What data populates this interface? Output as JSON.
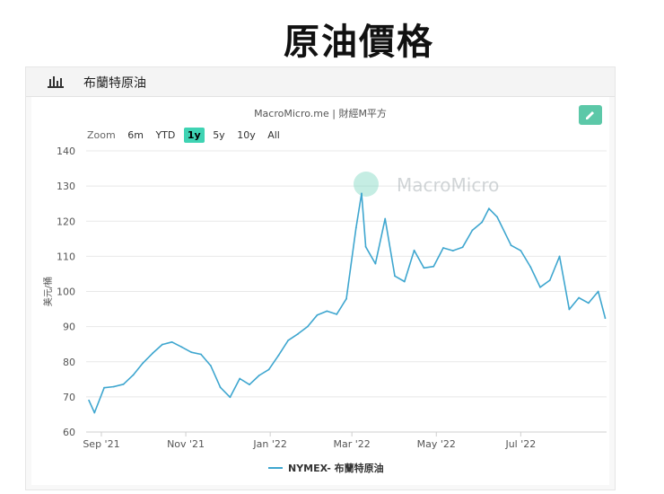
{
  "page_title": "原油價格",
  "card": {
    "title": "布蘭特原油",
    "source": "MacroMicro.me | 財經M平方",
    "watermark": "MacroMicro"
  },
  "zoom": {
    "label": "Zoom",
    "options": [
      "6m",
      "YTD",
      "1y",
      "5y",
      "10y",
      "All"
    ],
    "selected": "1y"
  },
  "colors": {
    "line": "#3ea6cf",
    "accent": "#5cc8a8",
    "zoom_active": "#3fd3b3"
  },
  "chart_data": {
    "type": "line",
    "title": "",
    "xlabel": "",
    "ylabel": "美元/桶",
    "ylim": [
      60,
      140
    ],
    "yticks": [
      60,
      70,
      80,
      90,
      100,
      110,
      120,
      130,
      140
    ],
    "xtick_labels": [
      "Sep '21",
      "Nov '21",
      "Jan '22",
      "Mar '22",
      "May '22",
      "Jul '22"
    ],
    "xtick_dates": [
      "2021-09-01",
      "2021-11-01",
      "2022-01-01",
      "2022-03-01",
      "2022-05-01",
      "2022-07-01"
    ],
    "grid": true,
    "legend_position": "bottom-center",
    "series": [
      {
        "name": "NYMEX- 布蘭特原油",
        "x": [
          "2021-08-23",
          "2021-08-27",
          "2021-09-03",
          "2021-09-10",
          "2021-09-17",
          "2021-09-24",
          "2021-10-01",
          "2021-10-08",
          "2021-10-15",
          "2021-10-22",
          "2021-10-29",
          "2021-11-05",
          "2021-11-12",
          "2021-11-19",
          "2021-11-26",
          "2021-12-03",
          "2021-12-10",
          "2021-12-17",
          "2021-12-24",
          "2021-12-31",
          "2022-01-07",
          "2022-01-14",
          "2022-01-21",
          "2022-01-28",
          "2022-02-04",
          "2022-02-11",
          "2022-02-18",
          "2022-02-25",
          "2022-03-04",
          "2022-03-08",
          "2022-03-11",
          "2022-03-18",
          "2022-03-25",
          "2022-04-01",
          "2022-04-08",
          "2022-04-15",
          "2022-04-22",
          "2022-04-29",
          "2022-05-06",
          "2022-05-13",
          "2022-05-20",
          "2022-05-27",
          "2022-06-03",
          "2022-06-08",
          "2022-06-14",
          "2022-06-24",
          "2022-07-01",
          "2022-07-08",
          "2022-07-15",
          "2022-07-22",
          "2022-07-29",
          "2022-08-05",
          "2022-08-12",
          "2022-08-19",
          "2022-08-26",
          "2022-08-31"
        ],
        "y": [
          69.0,
          65.5,
          72.6,
          72.9,
          73.6,
          76.2,
          79.6,
          82.4,
          84.9,
          85.6,
          84.2,
          82.7,
          82.1,
          78.9,
          72.7,
          69.9,
          75.2,
          73.5,
          76.1,
          77.8,
          81.8,
          86.1,
          87.9,
          90.0,
          93.3,
          94.4,
          93.5,
          97.9,
          118.1,
          127.9,
          112.7,
          107.9,
          120.7,
          104.4,
          102.8,
          111.7,
          106.7,
          107.1,
          112.4,
          111.6,
          112.6,
          117.4,
          119.7,
          123.6,
          121.2,
          113.1,
          111.6,
          107.0,
          101.2,
          103.2,
          110.0,
          94.9,
          98.2,
          96.7,
          100.0,
          92.4
        ]
      }
    ]
  }
}
